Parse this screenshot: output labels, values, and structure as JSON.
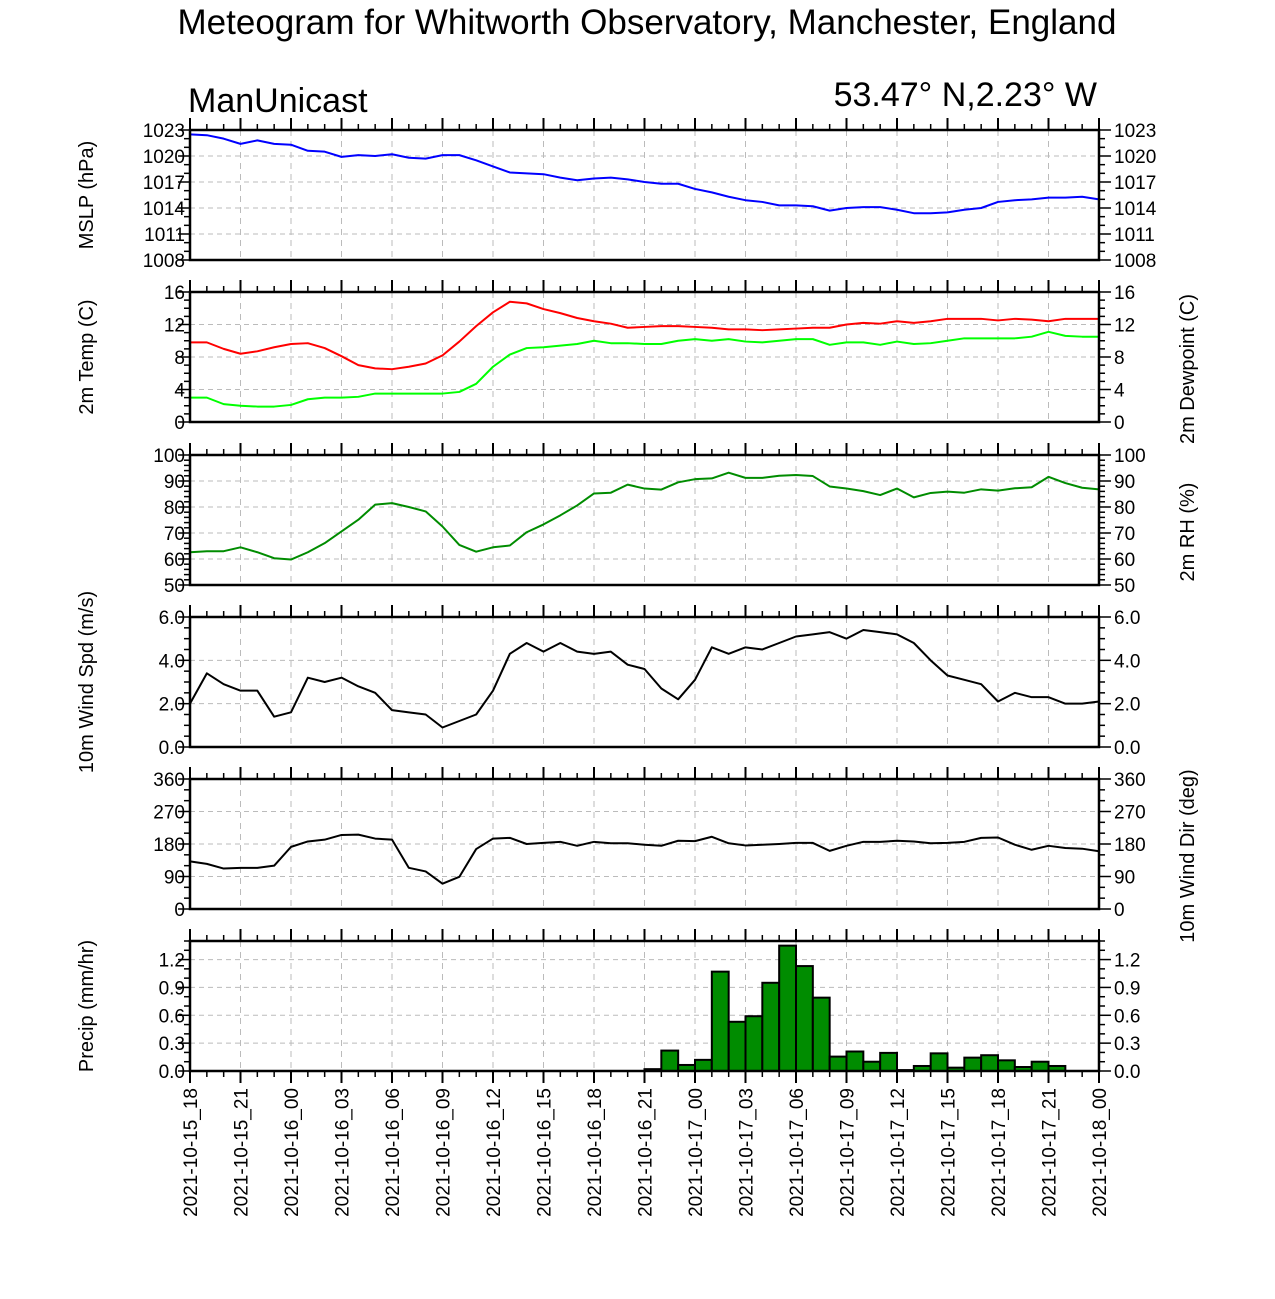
{
  "chart_data": {
    "type": "line",
    "title": "Meteogram for Whitworth Observatory, Manchester, England",
    "subtitle_left": "ManUnicast",
    "subtitle_right": "53.47° N,2.23° W",
    "x": {
      "unit": "hours",
      "range_hours": [
        0,
        54
      ],
      "tick_step_hours": 3,
      "tick_labels": [
        "2021-10-15_18",
        "2021-10-15_21",
        "2021-10-16_00",
        "2021-10-16_03",
        "2021-10-16_06",
        "2021-10-16_09",
        "2021-10-16_12",
        "2021-10-16_15",
        "2021-10-16_18",
        "2021-10-16_21",
        "2021-10-17_00",
        "2021-10-17_03",
        "2021-10-17_06",
        "2021-10-17_09",
        "2021-10-17_12",
        "2021-10-17_15",
        "2021-10-17_18",
        "2021-10-17_21",
        "2021-10-18_00"
      ]
    },
    "panels": [
      {
        "name": "mslp",
        "type": "line",
        "ylabel_left": "MSLP (hPa)",
        "ylabel_right": "",
        "ylim": [
          1008,
          1023
        ],
        "yticks": [
          "1008",
          "1011",
          "1014",
          "1017",
          "1020",
          "1023"
        ],
        "ytick_values": [
          1008,
          1011,
          1014,
          1017,
          1020,
          1023
        ],
        "right_tick_labels": true,
        "minor_step": 1,
        "series": [
          {
            "name": "MSLP",
            "color": "#0000ff",
            "values": [
              1022.5,
              1022.4,
              1022.0,
              1021.4,
              1021.8,
              1021.4,
              1021.3,
              1020.6,
              1020.5,
              1019.9,
              1020.1,
              1020.0,
              1020.2,
              1019.8,
              1019.7,
              1020.1,
              1020.1,
              1019.5,
              1018.8,
              1018.1,
              1018.0,
              1017.9,
              1017.5,
              1017.2,
              1017.4,
              1017.5,
              1017.3,
              1017.0,
              1016.8,
              1016.8,
              1016.2,
              1015.8,
              1015.3,
              1014.9,
              1014.7,
              1014.3,
              1014.3,
              1014.2,
              1013.7,
              1014.0,
              1014.1,
              1014.1,
              1013.8,
              1013.4,
              1013.4,
              1013.5,
              1013.8,
              1014.0,
              1014.7,
              1014.9,
              1015.0,
              1015.2,
              1015.2,
              1015.3,
              1015.0
            ]
          }
        ]
      },
      {
        "name": "temperature",
        "type": "line",
        "ylabel_left": "2m Temp (C)",
        "ylabel_right": "2m Dewpoint (C)",
        "ylim": [
          0,
          16
        ],
        "yticks": [
          "0",
          "4",
          "8",
          "12",
          "16"
        ],
        "ytick_values": [
          0,
          4,
          8,
          12,
          16
        ],
        "right_tick_labels": true,
        "minor_step": 1,
        "series": [
          {
            "name": "2m Temp",
            "color": "#ff0000",
            "values": [
              9.8,
              9.8,
              9.0,
              8.4,
              8.7,
              9.2,
              9.6,
              9.7,
              9.1,
              8.1,
              7.0,
              6.6,
              6.5,
              6.8,
              7.2,
              8.2,
              9.9,
              11.8,
              13.5,
              14.8,
              14.6,
              13.9,
              13.4,
              12.8,
              12.4,
              12.1,
              11.6,
              11.7,
              11.8,
              11.8,
              11.7,
              11.6,
              11.4,
              11.4,
              11.3,
              11.4,
              11.5,
              11.6,
              11.6,
              12.0,
              12.2,
              12.1,
              12.4,
              12.2,
              12.4,
              12.7,
              12.7,
              12.7,
              12.5,
              12.7,
              12.6,
              12.4,
              12.7,
              12.7,
              12.7
            ]
          },
          {
            "name": "2m Dewpoint",
            "color": "#00ff00",
            "values": [
              3.0,
              3.0,
              2.2,
              2.0,
              1.9,
              1.9,
              2.1,
              2.8,
              3.0,
              3.0,
              3.1,
              3.5,
              3.5,
              3.5,
              3.5,
              3.5,
              3.7,
              4.7,
              6.8,
              8.3,
              9.1,
              9.2,
              9.4,
              9.6,
              10.0,
              9.7,
              9.7,
              9.6,
              9.6,
              10.0,
              10.2,
              10.0,
              10.2,
              9.9,
              9.8,
              10.0,
              10.2,
              10.2,
              9.5,
              9.8,
              9.8,
              9.5,
              9.9,
              9.6,
              9.7,
              10.0,
              10.3,
              10.3,
              10.3,
              10.3,
              10.5,
              11.1,
              10.6,
              10.5,
              10.5
            ]
          }
        ]
      },
      {
        "name": "relative-humidity",
        "type": "line",
        "ylabel_left": "",
        "ylabel_right": "2m RH (%)",
        "ylim": [
          50,
          100
        ],
        "yticks": [
          "50",
          "60",
          "70",
          "80",
          "90",
          "100"
        ],
        "ytick_values": [
          50,
          60,
          70,
          80,
          90,
          100
        ],
        "right_tick_labels": true,
        "minor_step": 2,
        "series": [
          {
            "name": "2m RH",
            "color": "#008c00",
            "values": [
              62.6,
              63.0,
              63.0,
              64.5,
              62.6,
              60.3,
              59.8,
              62.6,
              66.1,
              70.6,
              75.1,
              80.9,
              81.5,
              80.0,
              78.3,
              72.5,
              65.4,
              62.8,
              64.5,
              65.2,
              70.3,
              73.3,
              76.8,
              80.6,
              85.2,
              85.5,
              88.6,
              87.1,
              86.7,
              89.5,
              90.7,
              91.0,
              93.2,
              91.2,
              91.2,
              92.0,
              92.3,
              91.9,
              87.9,
              87.1,
              86.1,
              84.6,
              87.1,
              83.7,
              85.4,
              85.9,
              85.5,
              86.8,
              86.3,
              87.2,
              87.6,
              91.6,
              89.2,
              87.4,
              86.8
            ]
          }
        ]
      },
      {
        "name": "wind-speed",
        "type": "line",
        "ylabel_left": "10m Wind Spd (m/s)",
        "ylabel_right": "",
        "ylim": [
          0,
          6
        ],
        "yticks": [
          "0.0",
          "2.0",
          "4.0",
          "6.0"
        ],
        "ytick_values": [
          0,
          2,
          4,
          6
        ],
        "right_tick_labels": true,
        "minor_step": 0.5,
        "series": [
          {
            "name": "10m Wind Spd",
            "color": "#000000",
            "values": [
              2.0,
              3.4,
              2.9,
              2.6,
              2.6,
              1.4,
              1.6,
              3.2,
              3.0,
              3.2,
              2.8,
              2.5,
              1.7,
              1.6,
              1.5,
              0.9,
              1.2,
              1.5,
              2.6,
              4.3,
              4.8,
              4.4,
              4.8,
              4.4,
              4.3,
              4.4,
              3.8,
              3.6,
              2.7,
              2.2,
              3.1,
              4.6,
              4.3,
              4.6,
              4.5,
              4.8,
              5.1,
              5.2,
              5.3,
              5.0,
              5.4,
              5.3,
              5.2,
              4.8,
              4.0,
              3.3,
              3.1,
              2.9,
              2.1,
              2.5,
              2.3,
              2.3,
              2.0,
              2.0,
              2.1
            ]
          }
        ]
      },
      {
        "name": "wind-direction",
        "type": "line",
        "ylabel_left": "",
        "ylabel_right": "10m Wind Dir (deg)",
        "ylim": [
          0,
          360
        ],
        "yticks": [
          "0",
          "90",
          "180",
          "270",
          "360"
        ],
        "ytick_values": [
          0,
          90,
          180,
          270,
          360
        ],
        "right_tick_labels": true,
        "minor_step": 30,
        "series": [
          {
            "name": "10m Wind Dir",
            "color": "#000000",
            "values": [
              132,
              125,
              112,
              114,
              114,
              120,
              172,
              187,
              192,
              205,
              206,
              195,
              192,
              114,
              104,
              70,
              89,
              166,
              195,
              197,
              180,
              183,
              186,
              175,
              186,
              182,
              182,
              178,
              175,
              189,
              188,
              200,
              182,
              176,
              178,
              180,
              183,
              183,
              161,
              175,
              186,
              186,
              189,
              187,
              182,
              183,
              186,
              197,
              198,
              178,
              164,
              175,
              169,
              167,
              160
            ]
          }
        ]
      },
      {
        "name": "precipitation",
        "type": "bar",
        "ylabel_left": "Precip (mm/hr)",
        "ylabel_right": "",
        "ylim": [
          0,
          1.4
        ],
        "yticks": [
          "0.0",
          "0.3",
          "0.6",
          "0.9",
          "1.2"
        ],
        "ytick_values": [
          0,
          0.3,
          0.6,
          0.9,
          1.2
        ],
        "right_tick_labels": true,
        "minor_step": 0.1,
        "bar_color": "#008c00",
        "bars": {
          "start_hour": 27,
          "values": [
            0.02,
            0.22,
            0.065,
            0.12,
            1.07,
            0.53,
            0.59,
            0.95,
            1.35,
            1.13,
            0.79,
            0.155,
            0.21,
            0.1,
            0.195,
            0.01,
            0.054,
            0.19,
            0.036,
            0.144,
            0.17,
            0.115,
            0.043,
            0.1,
            0.054
          ]
        }
      }
    ]
  }
}
